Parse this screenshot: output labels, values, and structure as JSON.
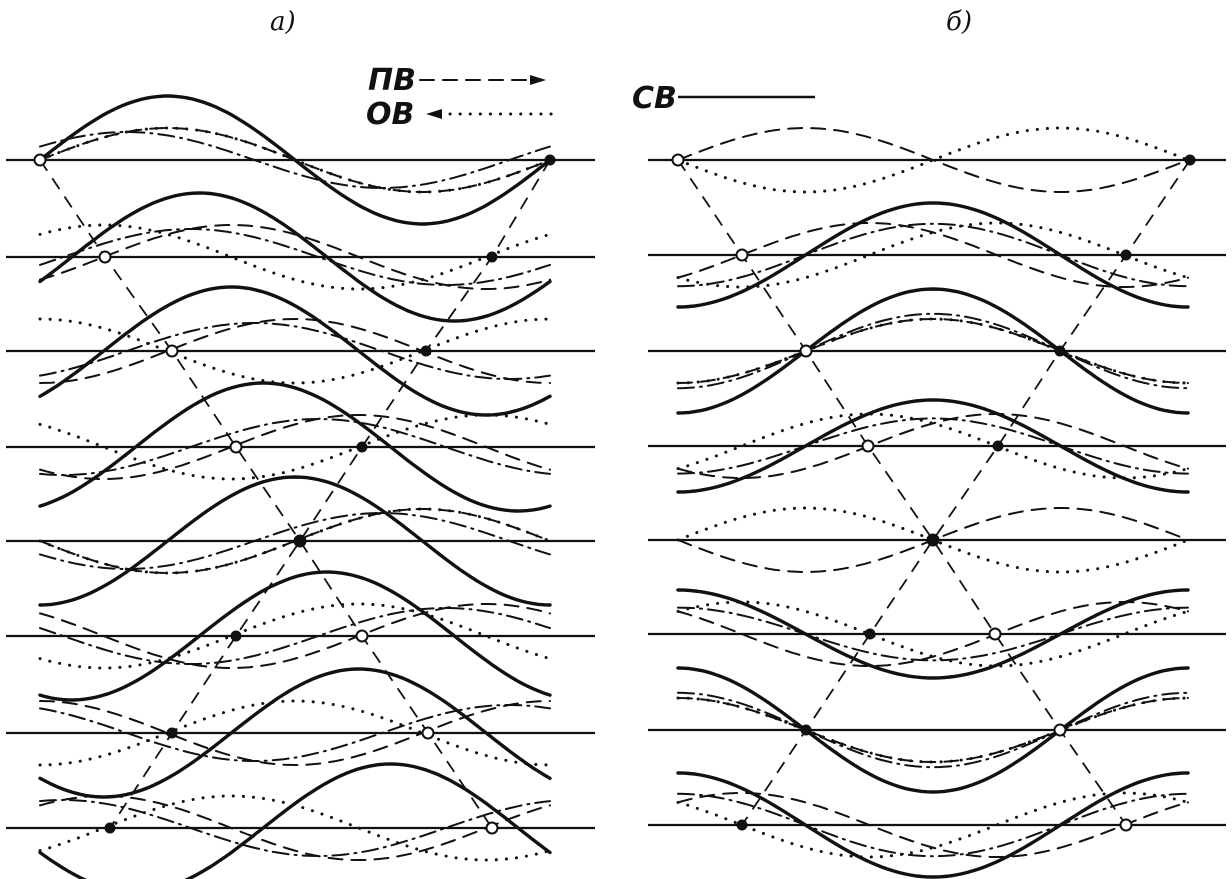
{
  "panels": {
    "a": {
      "label": "а)"
    },
    "b": {
      "label": "б)"
    }
  },
  "legend": {
    "forward": {
      "label": "ПВ",
      "style": "dashed",
      "arrow": "right"
    },
    "backward": {
      "label": "ОВ",
      "style": "dotted",
      "arrow": "left"
    },
    "standing": {
      "label": "СВ",
      "style": "solid"
    }
  },
  "style": {
    "ink": "#111111",
    "background": "#ffffff"
  }
}
